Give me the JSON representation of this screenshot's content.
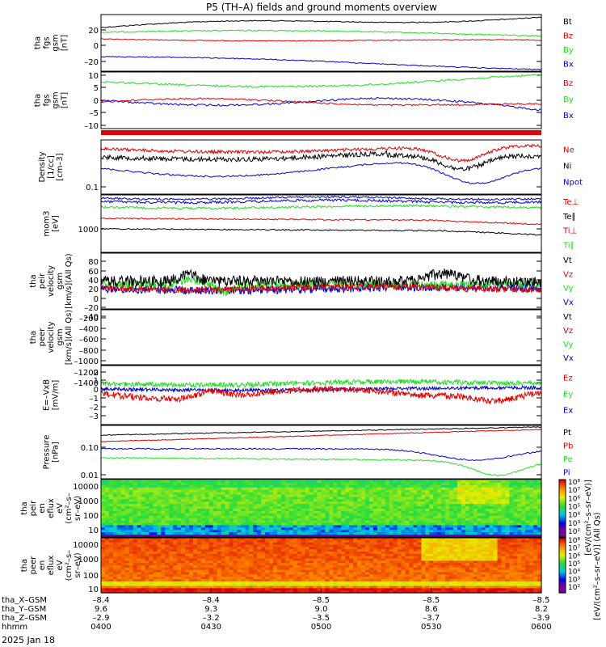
{
  "title": "P5 (TH–A) fields and ground moments overview",
  "date_label": "2025 Jan 18",
  "colors": {
    "black": "#000000",
    "red": "#e00000",
    "green": "#22dd22",
    "blue": "#0000cc"
  },
  "xaxis": {
    "row_labels": [
      "tha_X–GSM",
      "tha_Y–GSM",
      "tha_Z–GSM",
      "hhmm"
    ],
    "ticks": [
      {
        "x": "–8.4",
        "y": "9.6",
        "z": "–2.9",
        "t": "0400"
      },
      {
        "x": "–8.4",
        "y": "9.3",
        "z": "–3.2",
        "t": "0430"
      },
      {
        "x": "–8.5",
        "y": "9.0",
        "z": "–3.5",
        "t": "0500"
      },
      {
        "x": "–8.5",
        "y": "8.6",
        "z": "–3.7",
        "t": "0530"
      },
      {
        "x": "–8.5",
        "y": "8.2",
        "z": "–3.9",
        "t": "0600"
      }
    ]
  },
  "colorbars": {
    "ticks_top": [
      "10⁸",
      "10⁷",
      "10⁶",
      "10⁵",
      "10⁴",
      "10³",
      "10²"
    ],
    "ticks_bottom": [
      "10⁸",
      "10⁷",
      "10⁶",
      "10⁵",
      "10⁴",
      "10³",
      "10²"
    ],
    "label": "[eV/(cm²–s–sr–eV)] (All Qs)",
    "label_extra": "[eV/(cm²–s–sr–eV)]"
  },
  "chart_data": [
    {
      "type": "line",
      "id": "p1",
      "ylabel": [
        "tha",
        "fgs",
        "gsm",
        "[nT]"
      ],
      "yticks": [
        "20",
        "0",
        "–20"
      ],
      "ylim": [
        -30,
        38
      ],
      "series": [
        {
          "name": "Bt",
          "color": "black"
        },
        {
          "name": "Bz",
          "color": "red"
        },
        {
          "name": "By",
          "color": "green"
        },
        {
          "name": "Bx",
          "color": "blue"
        }
      ]
    },
    {
      "type": "line",
      "id": "p2",
      "ylabel": [
        "tha",
        "fgs",
        "gsm",
        "[nT]"
      ],
      "yticks": [
        "10",
        "5",
        "0",
        "–5",
        "–10"
      ],
      "ylim": [
        -13,
        12
      ],
      "series": [
        {
          "name": "Bz",
          "color": "red"
        },
        {
          "name": "By",
          "color": "green"
        },
        {
          "name": "Bx",
          "color": "blue"
        }
      ]
    },
    {
      "type": "line",
      "id": "p3",
      "ylabel": [
        "Density",
        "[1/cc]",
        "[cm–3]"
      ],
      "yticks": [
        "0.1"
      ],
      "ylim": [
        0.07,
        0.55
      ],
      "log": true,
      "series": [
        {
          "name": "Ne",
          "color": "red"
        },
        {
          "name": "Ni",
          "color": "black"
        },
        {
          "name": "Npot",
          "color": "blue"
        }
      ]
    },
    {
      "type": "line",
      "id": "p4",
      "ylabel": [
        "mom3",
        "[eV]"
      ],
      "yticks": [
        "1000"
      ],
      "ylim": [
        380,
        8000
      ],
      "log": true,
      "series": [
        {
          "name": "Te⊥",
          "color": "red"
        },
        {
          "name": "Te∥",
          "color": "black"
        },
        {
          "name": "Ti⊥",
          "color": "red"
        },
        {
          "name": "Ti∥",
          "color": "green"
        }
      ]
    },
    {
      "type": "line",
      "id": "p5",
      "ylabel": [
        "tha",
        "peir",
        "velocity",
        "gsm",
        "[km/s](All Qs)"
      ],
      "yticks": [
        "80",
        "60",
        "40",
        "20",
        "0",
        "–20",
        "–40"
      ],
      "ylim": [
        -40,
        95
      ],
      "series": [
        {
          "name": "Vt",
          "color": "black"
        },
        {
          "name": "Vz",
          "color": "red"
        },
        {
          "name": "Vy",
          "color": "green"
        },
        {
          "name": "Vx",
          "color": "blue"
        }
      ]
    },
    {
      "type": "line",
      "id": "p6",
      "ylabel": [
        "tha",
        "peer",
        "velocity",
        "gsm",
        "[km/s](All Qs)"
      ],
      "yticks": [
        "–200",
        "–400",
        "–600",
        "–800",
        "–1000",
        "–1200",
        "–1400"
      ],
      "ylim": [
        -1460,
        -140
      ],
      "series": [
        {
          "name": "Vt",
          "color": "black"
        },
        {
          "name": "Vz",
          "color": "red"
        },
        {
          "name": "Vy",
          "color": "green"
        },
        {
          "name": "Vx",
          "color": "blue"
        }
      ]
    },
    {
      "type": "line",
      "id": "p7",
      "ylabel": [
        "E=–VxB",
        "[mV/m]"
      ],
      "yticks": [
        "2",
        "1",
        "0",
        "–1",
        "–2",
        "–3"
      ],
      "ylim": [
        -3.3,
        2.2
      ],
      "series": [
        {
          "name": "Ez",
          "color": "red"
        },
        {
          "name": "Ey",
          "color": "green"
        },
        {
          "name": "Ex",
          "color": "blue"
        }
      ]
    },
    {
      "type": "line",
      "id": "p8",
      "ylabel": [
        "Pressure",
        "[nPa]"
      ],
      "yticks": [
        "0.10",
        "0.01"
      ],
      "ylim": [
        0.007,
        0.42
      ],
      "log": true,
      "series": [
        {
          "name": "Pt",
          "color": "black"
        },
        {
          "name": "Pb",
          "color": "red"
        },
        {
          "name": "Pe",
          "color": "green"
        },
        {
          "name": "Pi",
          "color": "blue"
        }
      ]
    },
    {
      "type": "heatmap",
      "id": "p9",
      "ylabel": [
        "tha",
        "peir",
        "en",
        "eflux",
        "eV",
        "(cm²–s–",
        "sr–eV)"
      ],
      "yticks": [
        "10000",
        "1000",
        "100",
        "10"
      ]
    },
    {
      "type": "heatmap",
      "id": "p10",
      "ylabel": [
        "tha",
        "peer",
        "en",
        "eflux",
        "eV",
        "(cm²–s–",
        "sr–eV)"
      ],
      "yticks": [
        "10000",
        "1000",
        "100",
        "10"
      ]
    }
  ]
}
